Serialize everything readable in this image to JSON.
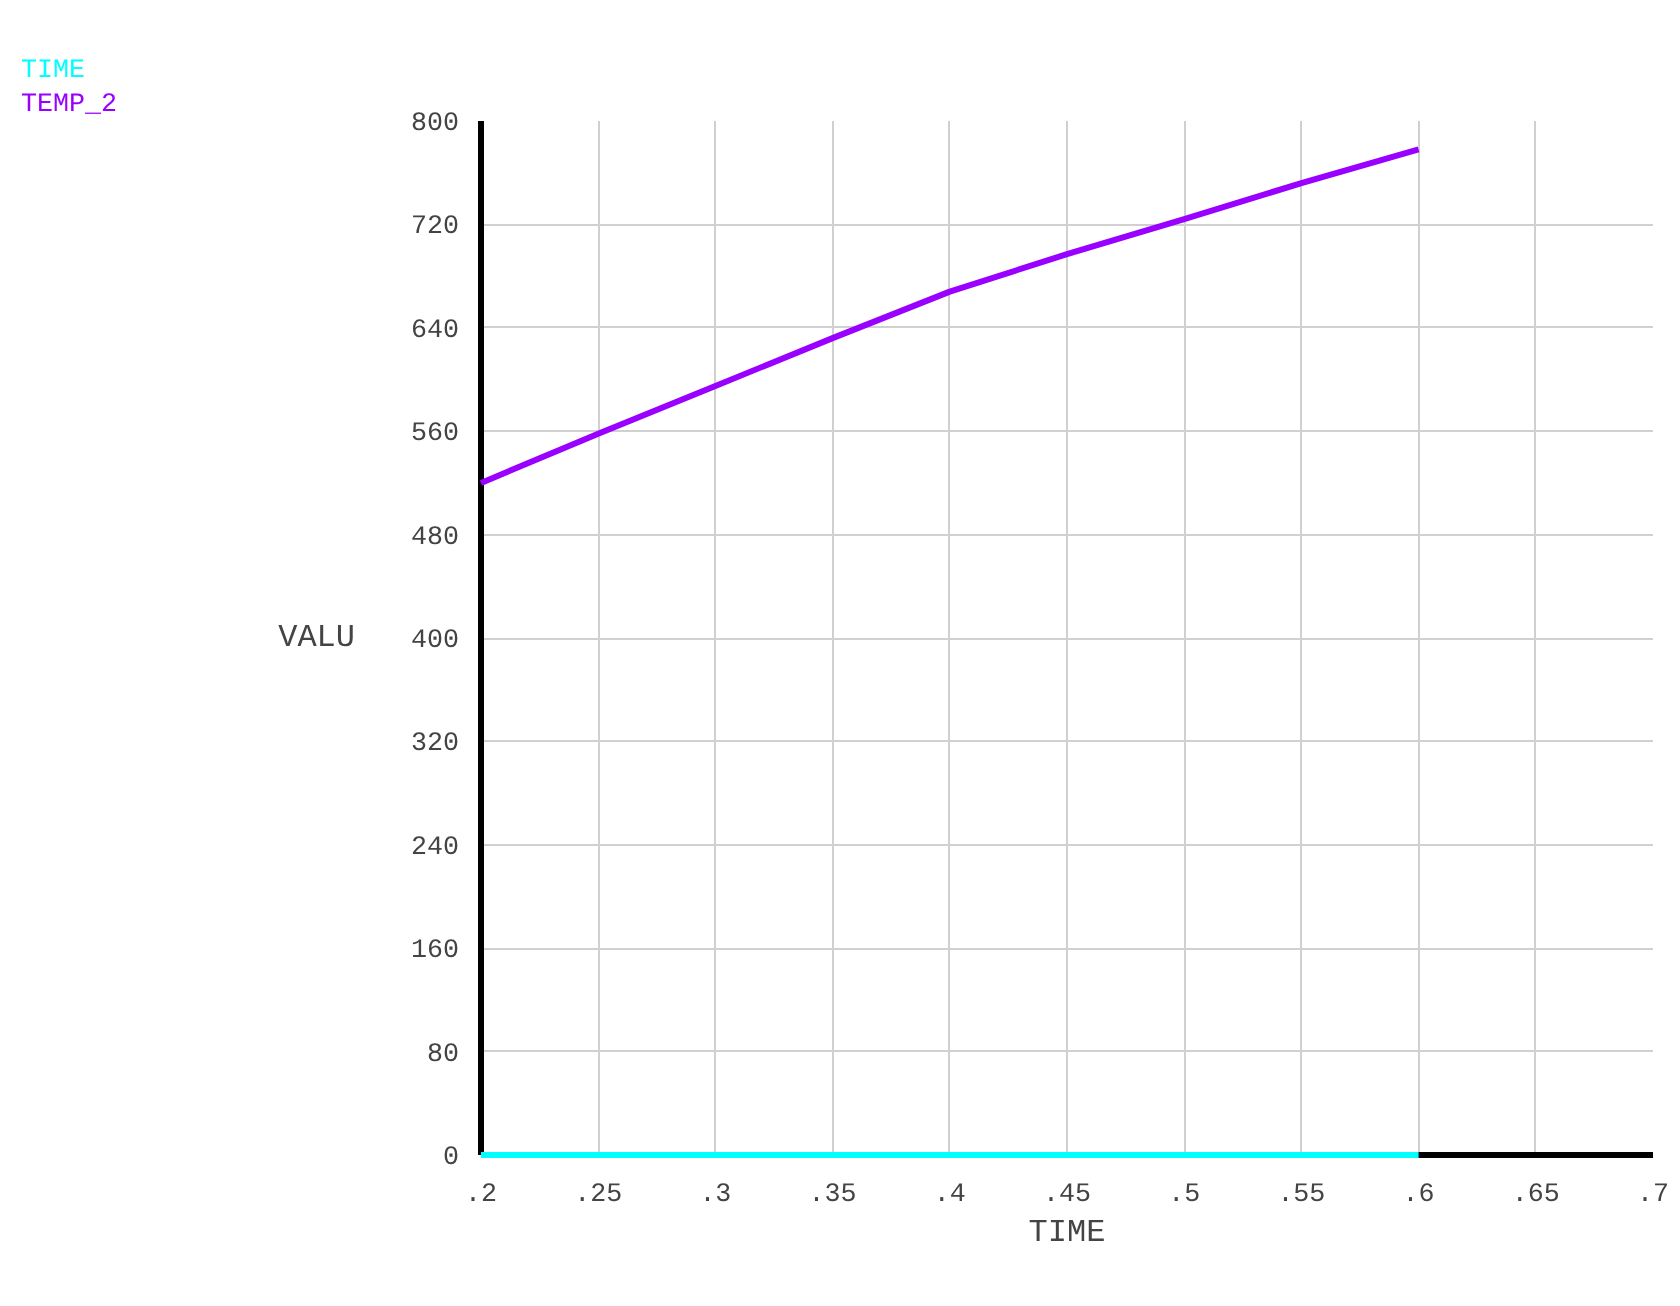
{
  "chart_data": {
    "type": "line",
    "xlabel": "TIME",
    "ylabel": "VALU",
    "x": [
      0.2,
      0.25,
      0.3,
      0.35,
      0.4,
      0.45,
      0.5,
      0.55,
      0.6
    ],
    "series": [
      {
        "name": "TIME",
        "color": "#00ffff",
        "values": [
          0,
          0,
          0,
          0,
          0,
          0,
          0,
          0,
          0
        ]
      },
      {
        "name": "TEMP_2",
        "color": "#9900ff",
        "values": [
          520,
          558,
          595,
          632,
          668,
          697,
          724,
          752,
          778
        ]
      }
    ],
    "xlim": [
      0.2,
      0.7
    ],
    "ylim": [
      0,
      800
    ],
    "xticks": [
      {
        "value": 0.2,
        "label": ".2"
      },
      {
        "value": 0.25,
        "label": ".25"
      },
      {
        "value": 0.3,
        "label": ".3"
      },
      {
        "value": 0.35,
        "label": ".35"
      },
      {
        "value": 0.4,
        "label": ".4"
      },
      {
        "value": 0.45,
        "label": ".45"
      },
      {
        "value": 0.5,
        "label": ".5"
      },
      {
        "value": 0.55,
        "label": ".55"
      },
      {
        "value": 0.6,
        "label": ".6"
      },
      {
        "value": 0.65,
        "label": ".65"
      },
      {
        "value": 0.7,
        "label": ".7"
      }
    ],
    "yticks": [
      0,
      80,
      160,
      240,
      320,
      400,
      480,
      560,
      640,
      720,
      800
    ],
    "grid": true,
    "legend": "top left",
    "marker": "none",
    "line_style": "solid"
  }
}
